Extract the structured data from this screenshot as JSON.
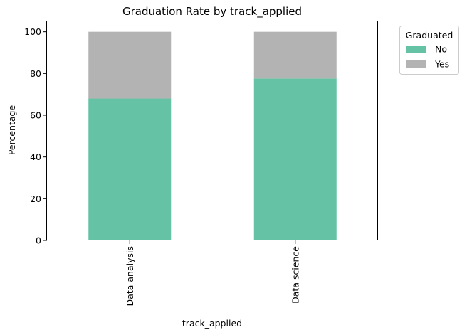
{
  "chart_data": {
    "type": "bar",
    "stacked": true,
    "title": "Graduation Rate by track_applied",
    "xlabel": "track_applied",
    "ylabel": "Percentage",
    "categories": [
      "Data analysis",
      "Data science"
    ],
    "series": [
      {
        "name": "No",
        "values": [
          68.0,
          77.6
        ],
        "color": "#66c2a5"
      },
      {
        "name": "Yes",
        "values": [
          32.0,
          22.4
        ],
        "color": "#b3b3b3"
      }
    ],
    "ylim": [
      0,
      105
    ],
    "yticks": [
      0,
      20,
      40,
      60,
      80,
      100
    ],
    "grid": false,
    "legend": {
      "title": "Graduated",
      "placement": "outside-upper-right"
    }
  }
}
